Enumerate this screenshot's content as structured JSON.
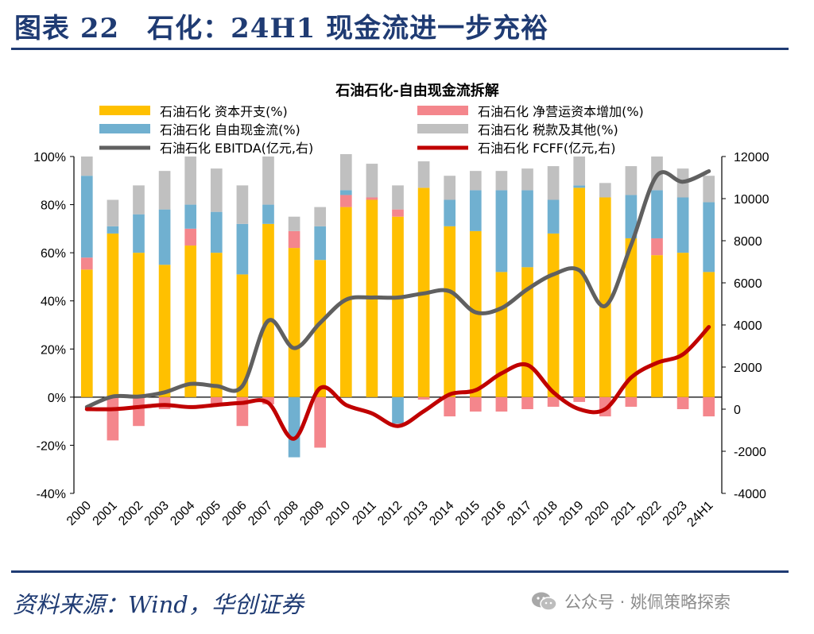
{
  "figure": {
    "title": "图表 22　石化：24H1 现金流进一步充裕",
    "source": "资料来源：Wind，华创证券",
    "watermark": "公众号 · 姚佩策略探索",
    "watermark_icon": "wechat-icon"
  },
  "chart_data": {
    "type": "bar",
    "title": "石油石化-自由现金流拆解",
    "categories": [
      "2000",
      "2001",
      "2002",
      "2003",
      "2004",
      "2005",
      "2006",
      "2007",
      "2008",
      "2009",
      "2010",
      "2011",
      "2012",
      "2013",
      "2014",
      "2015",
      "2016",
      "2017",
      "2018",
      "2019",
      "2020",
      "2021",
      "2022",
      "2023",
      "24H1"
    ],
    "y_left": {
      "min": -40,
      "max": 100,
      "ticks": [
        "100%",
        "80%",
        "60%",
        "40%",
        "20%",
        "0%",
        "-20%",
        "-40%"
      ],
      "tick_values": [
        100,
        80,
        60,
        40,
        20,
        0,
        -20,
        -40
      ]
    },
    "y_right": {
      "min": -4000,
      "max": 12000,
      "ticks": [
        "12000",
        "10000",
        "8000",
        "6000",
        "4000",
        "2000",
        "0",
        "-2000",
        "-4000"
      ],
      "tick_values": [
        12000,
        10000,
        8000,
        6000,
        4000,
        2000,
        0,
        -2000,
        -4000
      ]
    },
    "bar_series": [
      {
        "name": "石油石化 资本开支(%)",
        "color": "#ffc000",
        "values": [
          53,
          68,
          60,
          55,
          63,
          60,
          51,
          72,
          62,
          57,
          79,
          82,
          75,
          87,
          71,
          69,
          52,
          54,
          68,
          87,
          83,
          66,
          59,
          60,
          52
        ]
      },
      {
        "name": "石油石化 净营运资本增加(%)",
        "color": "#f4868c",
        "values": [
          5,
          -18,
          -12,
          -5,
          7,
          -3,
          -12,
          -3,
          7,
          -21,
          5,
          1,
          3,
          -1,
          -8,
          -6,
          -6,
          -5,
          -4,
          -2,
          -8,
          -4,
          7,
          -5,
          -8
        ]
      },
      {
        "name": "石油石化 自由现金流(%)",
        "color": "#70b0d0",
        "values": [
          34,
          3,
          16,
          23,
          10,
          17,
          21,
          8,
          -25,
          14,
          2,
          0,
          -11,
          0,
          11,
          17,
          34,
          32,
          14,
          1,
          0,
          18,
          20,
          23,
          29
        ]
      },
      {
        "name": "石油石化 税款及其他(%)",
        "color": "#c0c0c0",
        "values": [
          8,
          11,
          12,
          16,
          20,
          18,
          16,
          20,
          6,
          8,
          15,
          14,
          10,
          11,
          10,
          8,
          8,
          9,
          14,
          12,
          6,
          12,
          14,
          12,
          11
        ]
      }
    ],
    "line_series": [
      {
        "name": "石油石化 EBITDA(亿元,右)",
        "color": "#606060",
        "values": [
          100,
          600,
          600,
          800,
          1200,
          1100,
          1100,
          4200,
          2900,
          4100,
          5200,
          5300,
          5300,
          5500,
          5600,
          4600,
          4800,
          5700,
          6400,
          6600,
          4900,
          7800,
          11100,
          10800,
          11300
        ]
      },
      {
        "name": "石油石化 FCFF(亿元,右)",
        "color": "#c00000",
        "values": [
          0,
          0,
          100,
          200,
          100,
          200,
          300,
          300,
          -1400,
          1000,
          200,
          -200,
          -800,
          -100,
          700,
          900,
          1700,
          2100,
          800,
          0,
          0,
          1500,
          2200,
          2600,
          3900
        ]
      }
    ],
    "legend_position": "top",
    "grid": false
  }
}
